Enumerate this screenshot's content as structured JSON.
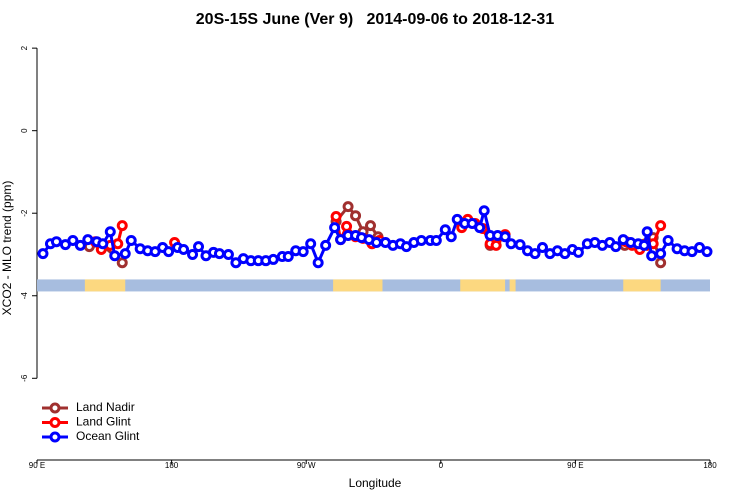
{
  "chart_data": {
    "type": "line",
    "title": "20S-15S June (Ver 9)   2014-09-06 to 2018-12-31",
    "x_label": "Longitude",
    "y_label": "XCO2 - MLO trend (ppm)",
    "xlim": [
      90,
      540
    ],
    "xticks": [
      {
        "value": 90,
        "label": "90 E"
      },
      180,
      {
        "value": 270,
        "label": "90 W"
      },
      {
        "value": 360,
        "label": "0"
      },
      {
        "value": 450,
        "label": "90 E"
      },
      180
    ],
    "ylim": [
      -7.98,
      2.27
    ],
    "yticks": [
      2,
      0,
      -2,
      -4,
      -6
    ],
    "legend": "bottom-left",
    "mask": {
      "level": -3.75,
      "ocean_color": "#a7bddf",
      "land_color": "#fcd880",
      "land": [
        [
          122,
          149
        ],
        [
          288,
          321
        ],
        [
          373,
          403
        ],
        [
          406,
          410
        ],
        [
          482,
          507
        ]
      ]
    },
    "series": [
      {
        "name": "Land Nadir",
        "color": "#a0302f",
        "x": [
          125,
          134,
          147,
          null,
          290,
          298,
          303,
          308,
          313,
          318,
          null,
          393,
          397,
          null,
          483,
          502,
          507
        ],
        "values": [
          -2.81,
          -2.78,
          -3.2,
          null,
          -2.2,
          -1.84,
          -2.06,
          -2.45,
          -2.3,
          -2.57,
          null,
          -2.78,
          -2.66,
          null,
          -2.78,
          -2.59,
          -3.2
        ]
      },
      {
        "name": "Land Glint",
        "color": "#ff0000",
        "x": [
          129,
          133,
          139,
          144,
          147,
          null,
          182,
          null,
          290,
          293,
          297,
          303,
          308,
          314,
          319,
          null,
          374,
          378,
          383,
          388,
          393,
          397,
          403,
          null,
          484,
          488,
          493,
          498,
          502,
          507
        ],
        "values": [
          -2.69,
          -2.88,
          -2.78,
          -2.74,
          -2.3,
          null,
          -2.71,
          null,
          -2.08,
          -2.64,
          -2.32,
          -2.57,
          -2.61,
          -2.74,
          -2.66,
          null,
          -2.35,
          -2.15,
          -2.25,
          -2.37,
          -2.74,
          -2.78,
          -2.52,
          null,
          -2.69,
          -2.78,
          -2.88,
          -2.78,
          -2.74,
          -2.3
        ]
      },
      {
        "name": "Ocean Glint",
        "color": "#0000ff",
        "x": [
          94,
          99,
          103,
          109,
          114,
          119,
          124,
          130,
          134,
          139,
          142,
          149,
          153,
          159,
          164,
          169,
          174,
          178,
          184,
          188,
          194,
          198,
          203,
          208,
          212,
          218,
          223,
          228,
          233,
          238,
          243,
          248,
          254,
          258,
          263,
          268,
          273,
          278,
          283,
          289,
          293,
          298,
          303,
          307,
          312,
          317,
          323,
          328,
          333,
          337,
          342,
          347,
          353,
          357,
          363,
          367,
          371,
          376,
          381,
          386,
          389,
          393,
          398,
          403,
          407,
          413,
          418,
          423,
          428,
          433,
          438,
          443,
          448,
          452,
          458,
          463,
          468,
          473,
          477,
          482,
          487,
          492,
          496,
          498,
          501,
          507,
          512,
          518,
          523,
          528,
          533,
          538
        ],
        "values": [
          -2.98,
          -2.74,
          -2.69,
          -2.76,
          -2.66,
          -2.78,
          -2.64,
          -2.69,
          -2.74,
          -2.45,
          -3.03,
          -2.98,
          -2.66,
          -2.86,
          -2.91,
          -2.93,
          -2.83,
          -2.93,
          -2.83,
          -2.88,
          -3.0,
          -2.81,
          -3.03,
          -2.95,
          -2.98,
          -3.0,
          -3.2,
          -3.1,
          -3.15,
          -3.15,
          -3.15,
          -3.12,
          -3.05,
          -3.05,
          -2.91,
          -2.93,
          -2.74,
          -3.2,
          -2.78,
          -2.35,
          -2.64,
          -2.54,
          -2.54,
          -2.59,
          -2.64,
          -2.71,
          -2.71,
          -2.78,
          -2.74,
          -2.81,
          -2.71,
          -2.66,
          -2.66,
          -2.66,
          -2.4,
          -2.57,
          -2.15,
          -2.25,
          -2.25,
          -2.35,
          -1.94,
          -2.54,
          -2.54,
          -2.57,
          -2.74,
          -2.76,
          -2.91,
          -2.98,
          -2.83,
          -2.98,
          -2.91,
          -2.98,
          -2.88,
          -2.95,
          -2.74,
          -2.71,
          -2.78,
          -2.71,
          -2.81,
          -2.64,
          -2.71,
          -2.74,
          -2.78,
          -2.45,
          -3.03,
          -2.98,
          -2.66,
          -2.86,
          -2.91,
          -2.93,
          -2.83,
          -2.93
        ]
      }
    ]
  }
}
